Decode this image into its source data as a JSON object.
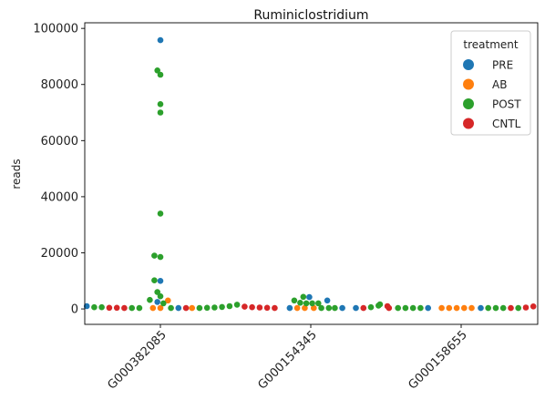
{
  "chart_data": {
    "type": "scatter",
    "subtype": "swarm",
    "title": "Ruminiclostridium",
    "xlabel": "",
    "ylabel": "reads",
    "categories": [
      "G000382085",
      "G000154345",
      "G000158655"
    ],
    "ylim": [
      -5500,
      102000
    ],
    "yticks": [
      0,
      20000,
      40000,
      60000,
      80000,
      100000
    ],
    "ytick_labels": [
      "0",
      "20000",
      "40000",
      "60000",
      "80000",
      "100000"
    ],
    "grid": false,
    "legend": {
      "title": "treatment",
      "placement": "top-right",
      "entries": [
        {
          "name": "PRE",
          "color": "#1f77b4"
        },
        {
          "name": "AB",
          "color": "#ff7f0e"
        },
        {
          "name": "POST",
          "color": "#2ca02c"
        },
        {
          "name": "CNTL",
          "color": "#d62728"
        }
      ]
    },
    "series": [
      {
        "name": "PRE",
        "color": "#1f77b4",
        "points": [
          {
            "cat": 0,
            "offset": 0.0,
            "y": 95800
          },
          {
            "cat": 0,
            "offset": 0.0,
            "y": 10000
          },
          {
            "cat": 0,
            "offset": -0.02,
            "y": 2500
          },
          {
            "cat": 0,
            "offset": -0.49,
            "y": 1000
          },
          {
            "cat": 0,
            "offset": 0.12,
            "y": 300
          },
          {
            "cat": 1,
            "offset": -0.01,
            "y": 4200
          },
          {
            "cat": 1,
            "offset": 0.11,
            "y": 3000
          },
          {
            "cat": 1,
            "offset": -0.14,
            "y": 300
          },
          {
            "cat": 1,
            "offset": 0.21,
            "y": 300
          },
          {
            "cat": 1,
            "offset": 0.3,
            "y": 300
          },
          {
            "cat": 2,
            "offset": -0.22,
            "y": 300
          },
          {
            "cat": 2,
            "offset": 0.13,
            "y": 300
          }
        ]
      },
      {
        "name": "AB",
        "color": "#ff7f0e",
        "points": [
          {
            "cat": 0,
            "offset": 0.05,
            "y": 3000
          },
          {
            "cat": 0,
            "offset": -0.05,
            "y": 300
          },
          {
            "cat": 0,
            "offset": 0.0,
            "y": 300
          },
          {
            "cat": 0,
            "offset": 0.21,
            "y": 300
          },
          {
            "cat": 1,
            "offset": -0.09,
            "y": 300
          },
          {
            "cat": 1,
            "offset": -0.04,
            "y": 300
          },
          {
            "cat": 1,
            "offset": 0.02,
            "y": 300
          },
          {
            "cat": 2,
            "offset": -0.13,
            "y": 300
          },
          {
            "cat": 2,
            "offset": -0.08,
            "y": 300
          },
          {
            "cat": 2,
            "offset": -0.03,
            "y": 300
          },
          {
            "cat": 2,
            "offset": 0.02,
            "y": 300
          },
          {
            "cat": 2,
            "offset": 0.07,
            "y": 300
          }
        ]
      },
      {
        "name": "POST",
        "color": "#2ca02c",
        "points": [
          {
            "cat": 0,
            "offset": -0.02,
            "y": 85000
          },
          {
            "cat": 0,
            "offset": 0.0,
            "y": 83500
          },
          {
            "cat": 0,
            "offset": 0.0,
            "y": 73000
          },
          {
            "cat": 0,
            "offset": 0.0,
            "y": 70000
          },
          {
            "cat": 0,
            "offset": 0.0,
            "y": 34000
          },
          {
            "cat": 0,
            "offset": -0.04,
            "y": 19000
          },
          {
            "cat": 0,
            "offset": 0.0,
            "y": 18500
          },
          {
            "cat": 0,
            "offset": -0.04,
            "y": 10200
          },
          {
            "cat": 0,
            "offset": -0.02,
            "y": 6000
          },
          {
            "cat": 0,
            "offset": 0.0,
            "y": 4500
          },
          {
            "cat": 0,
            "offset": -0.07,
            "y": 3200
          },
          {
            "cat": 0,
            "offset": 0.02,
            "y": 2000
          },
          {
            "cat": 0,
            "offset": -0.44,
            "y": 600
          },
          {
            "cat": 0,
            "offset": -0.39,
            "y": 600
          },
          {
            "cat": 0,
            "offset": -0.19,
            "y": 300
          },
          {
            "cat": 0,
            "offset": -0.14,
            "y": 300
          },
          {
            "cat": 0,
            "offset": 0.07,
            "y": 300
          },
          {
            "cat": 0,
            "offset": 0.26,
            "y": 300
          },
          {
            "cat": 0,
            "offset": 0.31,
            "y": 400
          },
          {
            "cat": 0,
            "offset": 0.36,
            "y": 500
          },
          {
            "cat": 0,
            "offset": 0.41,
            "y": 700
          },
          {
            "cat": 0,
            "offset": 0.46,
            "y": 1000
          },
          {
            "cat": 1,
            "offset": -0.49,
            "y": 1500
          },
          {
            "cat": 1,
            "offset": -0.11,
            "y": 3000
          },
          {
            "cat": 1,
            "offset": -0.07,
            "y": 2200
          },
          {
            "cat": 1,
            "offset": -0.05,
            "y": 4300
          },
          {
            "cat": 1,
            "offset": -0.03,
            "y": 2000
          },
          {
            "cat": 1,
            "offset": 0.01,
            "y": 2000
          },
          {
            "cat": 1,
            "offset": 0.05,
            "y": 2000
          },
          {
            "cat": 1,
            "offset": 0.07,
            "y": 300
          },
          {
            "cat": 1,
            "offset": 0.12,
            "y": 300
          },
          {
            "cat": 1,
            "offset": 0.16,
            "y": 300
          },
          {
            "cat": 1,
            "offset": 0.4,
            "y": 600
          },
          {
            "cat": 1,
            "offset": 0.45,
            "y": 1200
          },
          {
            "cat": 1,
            "offset": 0.46,
            "y": 1600
          },
          {
            "cat": 2,
            "offset": -0.42,
            "y": 300
          },
          {
            "cat": 2,
            "offset": -0.37,
            "y": 300
          },
          {
            "cat": 2,
            "offset": -0.32,
            "y": 300
          },
          {
            "cat": 2,
            "offset": -0.27,
            "y": 300
          },
          {
            "cat": 2,
            "offset": 0.18,
            "y": 300
          },
          {
            "cat": 2,
            "offset": 0.23,
            "y": 300
          },
          {
            "cat": 2,
            "offset": 0.28,
            "y": 300
          },
          {
            "cat": 2,
            "offset": 0.38,
            "y": 300
          }
        ]
      },
      {
        "name": "CNTL",
        "color": "#d62728",
        "points": [
          {
            "cat": 0,
            "offset": -0.34,
            "y": 400
          },
          {
            "cat": 0,
            "offset": -0.29,
            "y": 400
          },
          {
            "cat": 0,
            "offset": -0.24,
            "y": 300
          },
          {
            "cat": 0,
            "offset": 0.17,
            "y": 300
          },
          {
            "cat": 1,
            "offset": -0.44,
            "y": 800
          },
          {
            "cat": 1,
            "offset": -0.39,
            "y": 600
          },
          {
            "cat": 1,
            "offset": -0.34,
            "y": 500
          },
          {
            "cat": 1,
            "offset": -0.29,
            "y": 400
          },
          {
            "cat": 1,
            "offset": -0.24,
            "y": 300
          },
          {
            "cat": 1,
            "offset": 0.35,
            "y": 300
          },
          {
            "cat": 2,
            "offset": -0.49,
            "y": 1000
          },
          {
            "cat": 2,
            "offset": -0.48,
            "y": 300
          },
          {
            "cat": 2,
            "offset": 0.33,
            "y": 300
          },
          {
            "cat": 2,
            "offset": 0.43,
            "y": 500
          },
          {
            "cat": 2,
            "offset": 0.48,
            "y": 900
          }
        ]
      }
    ]
  }
}
